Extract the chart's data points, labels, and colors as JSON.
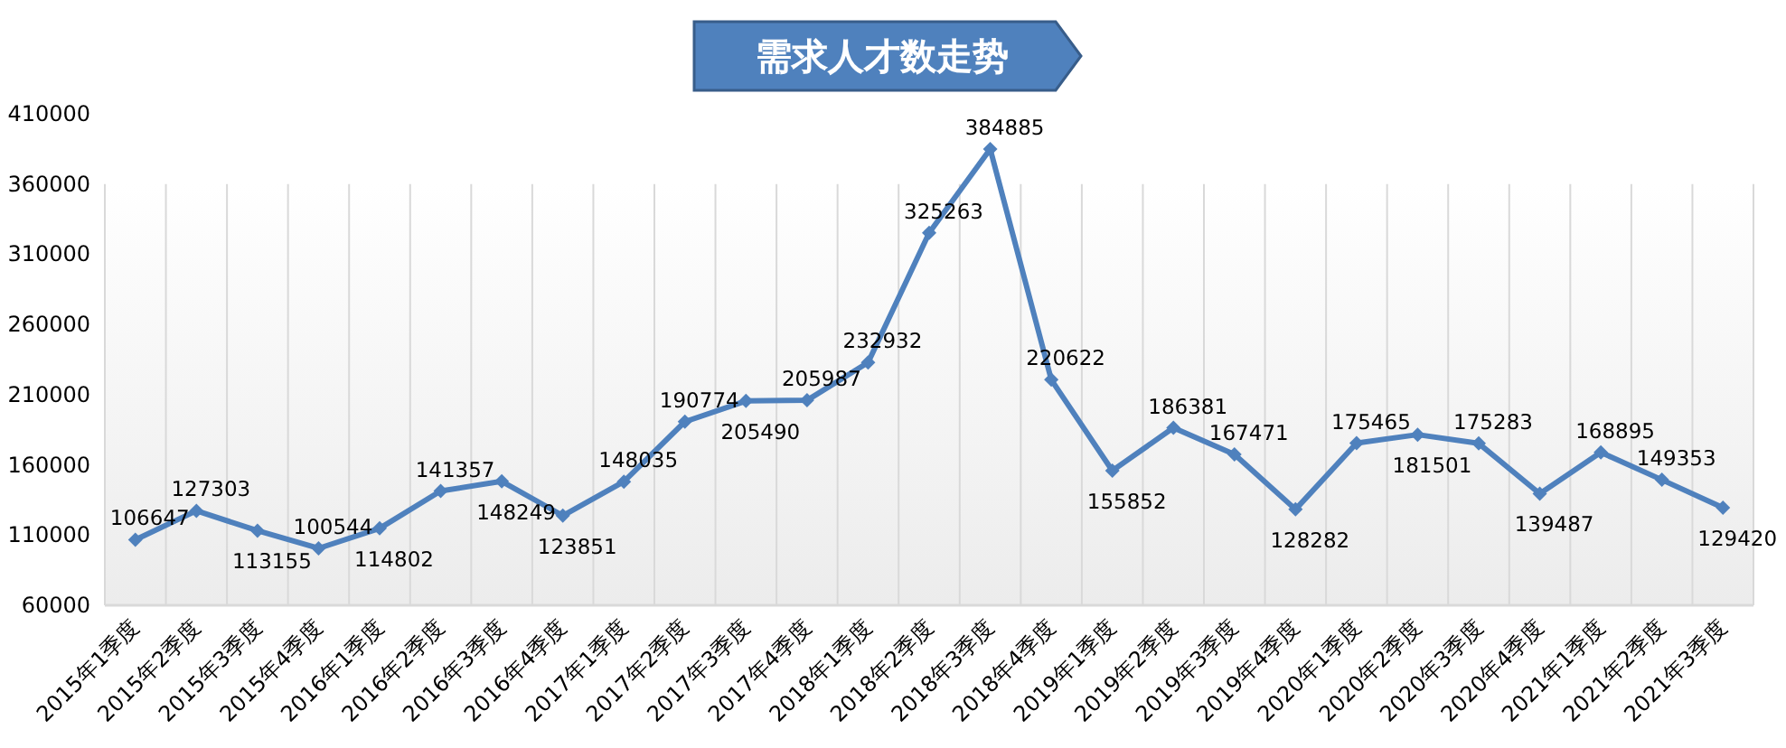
{
  "chart_data": {
    "type": "line",
    "title": "需求人才数走势",
    "categories": [
      "2015年1季度",
      "2015年2季度",
      "2015年3季度",
      "2015年4季度",
      "2016年1季度",
      "2016年2季度",
      "2016年3季度",
      "2016年4季度",
      "2017年1季度",
      "2017年2季度",
      "2017年3季度",
      "2017年4季度",
      "2018年1季度",
      "2018年2季度",
      "2018年3季度",
      "2018年4季度",
      "2019年1季度",
      "2019年2季度",
      "2019年3季度",
      "2019年4季度",
      "2020年1季度",
      "2020年2季度",
      "2020年3季度",
      "2020年4季度",
      "2021年1季度",
      "2021年2季度",
      "2021年3季度"
    ],
    "series": [
      {
        "color": "#4f81bd",
        "values": [
          106647,
          127303,
          113155,
          100544,
          114802,
          141357,
          148249,
          123851,
          148035,
          190774,
          205490,
          205987,
          232932,
          325263,
          384885,
          220622,
          155852,
          186381,
          167471,
          128282,
          175465,
          181501,
          175283,
          139487,
          168895,
          149353,
          129420
        ]
      }
    ],
    "ylim": [
      60000,
      410000
    ],
    "yticks": [
      60000,
      110000,
      160000,
      210000,
      260000,
      310000,
      360000,
      410000
    ],
    "grid": "x",
    "marker": "diamond",
    "line_style": "solid",
    "data_labels": true
  }
}
